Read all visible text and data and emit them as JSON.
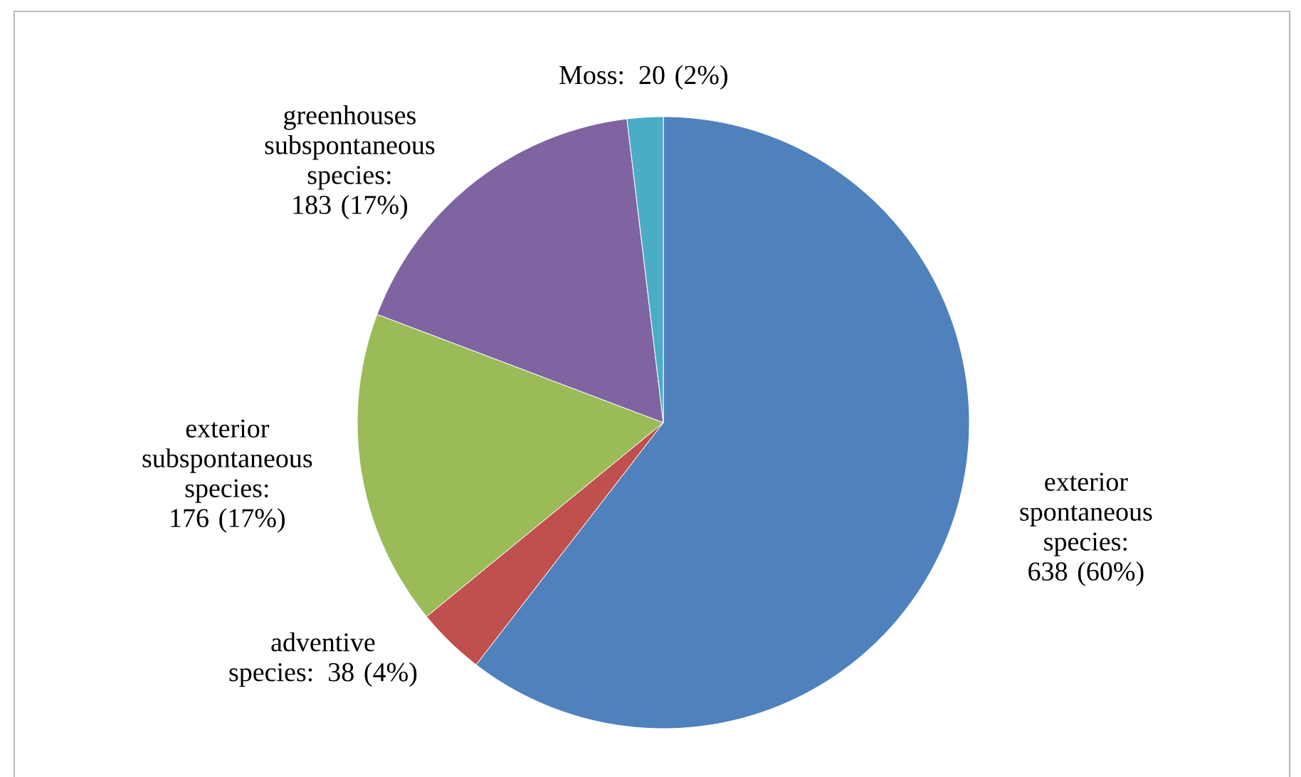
{
  "chart_data": {
    "type": "pie",
    "categories": [
      "exterior spontaneous species: 638 (60%)",
      "adventive species: 38 (4%)",
      "exterior subspontaneous species: 176 (17%)",
      "greenhouses subspontaneous species: 183 (17%)",
      "Moss: 20 (2%)"
    ],
    "values": [
      638,
      38,
      176,
      183,
      20
    ],
    "colors": [
      "#4f81bd",
      "#c0504d",
      "#9bbb59",
      "#8064a2",
      "#4bacc6"
    ]
  }
}
